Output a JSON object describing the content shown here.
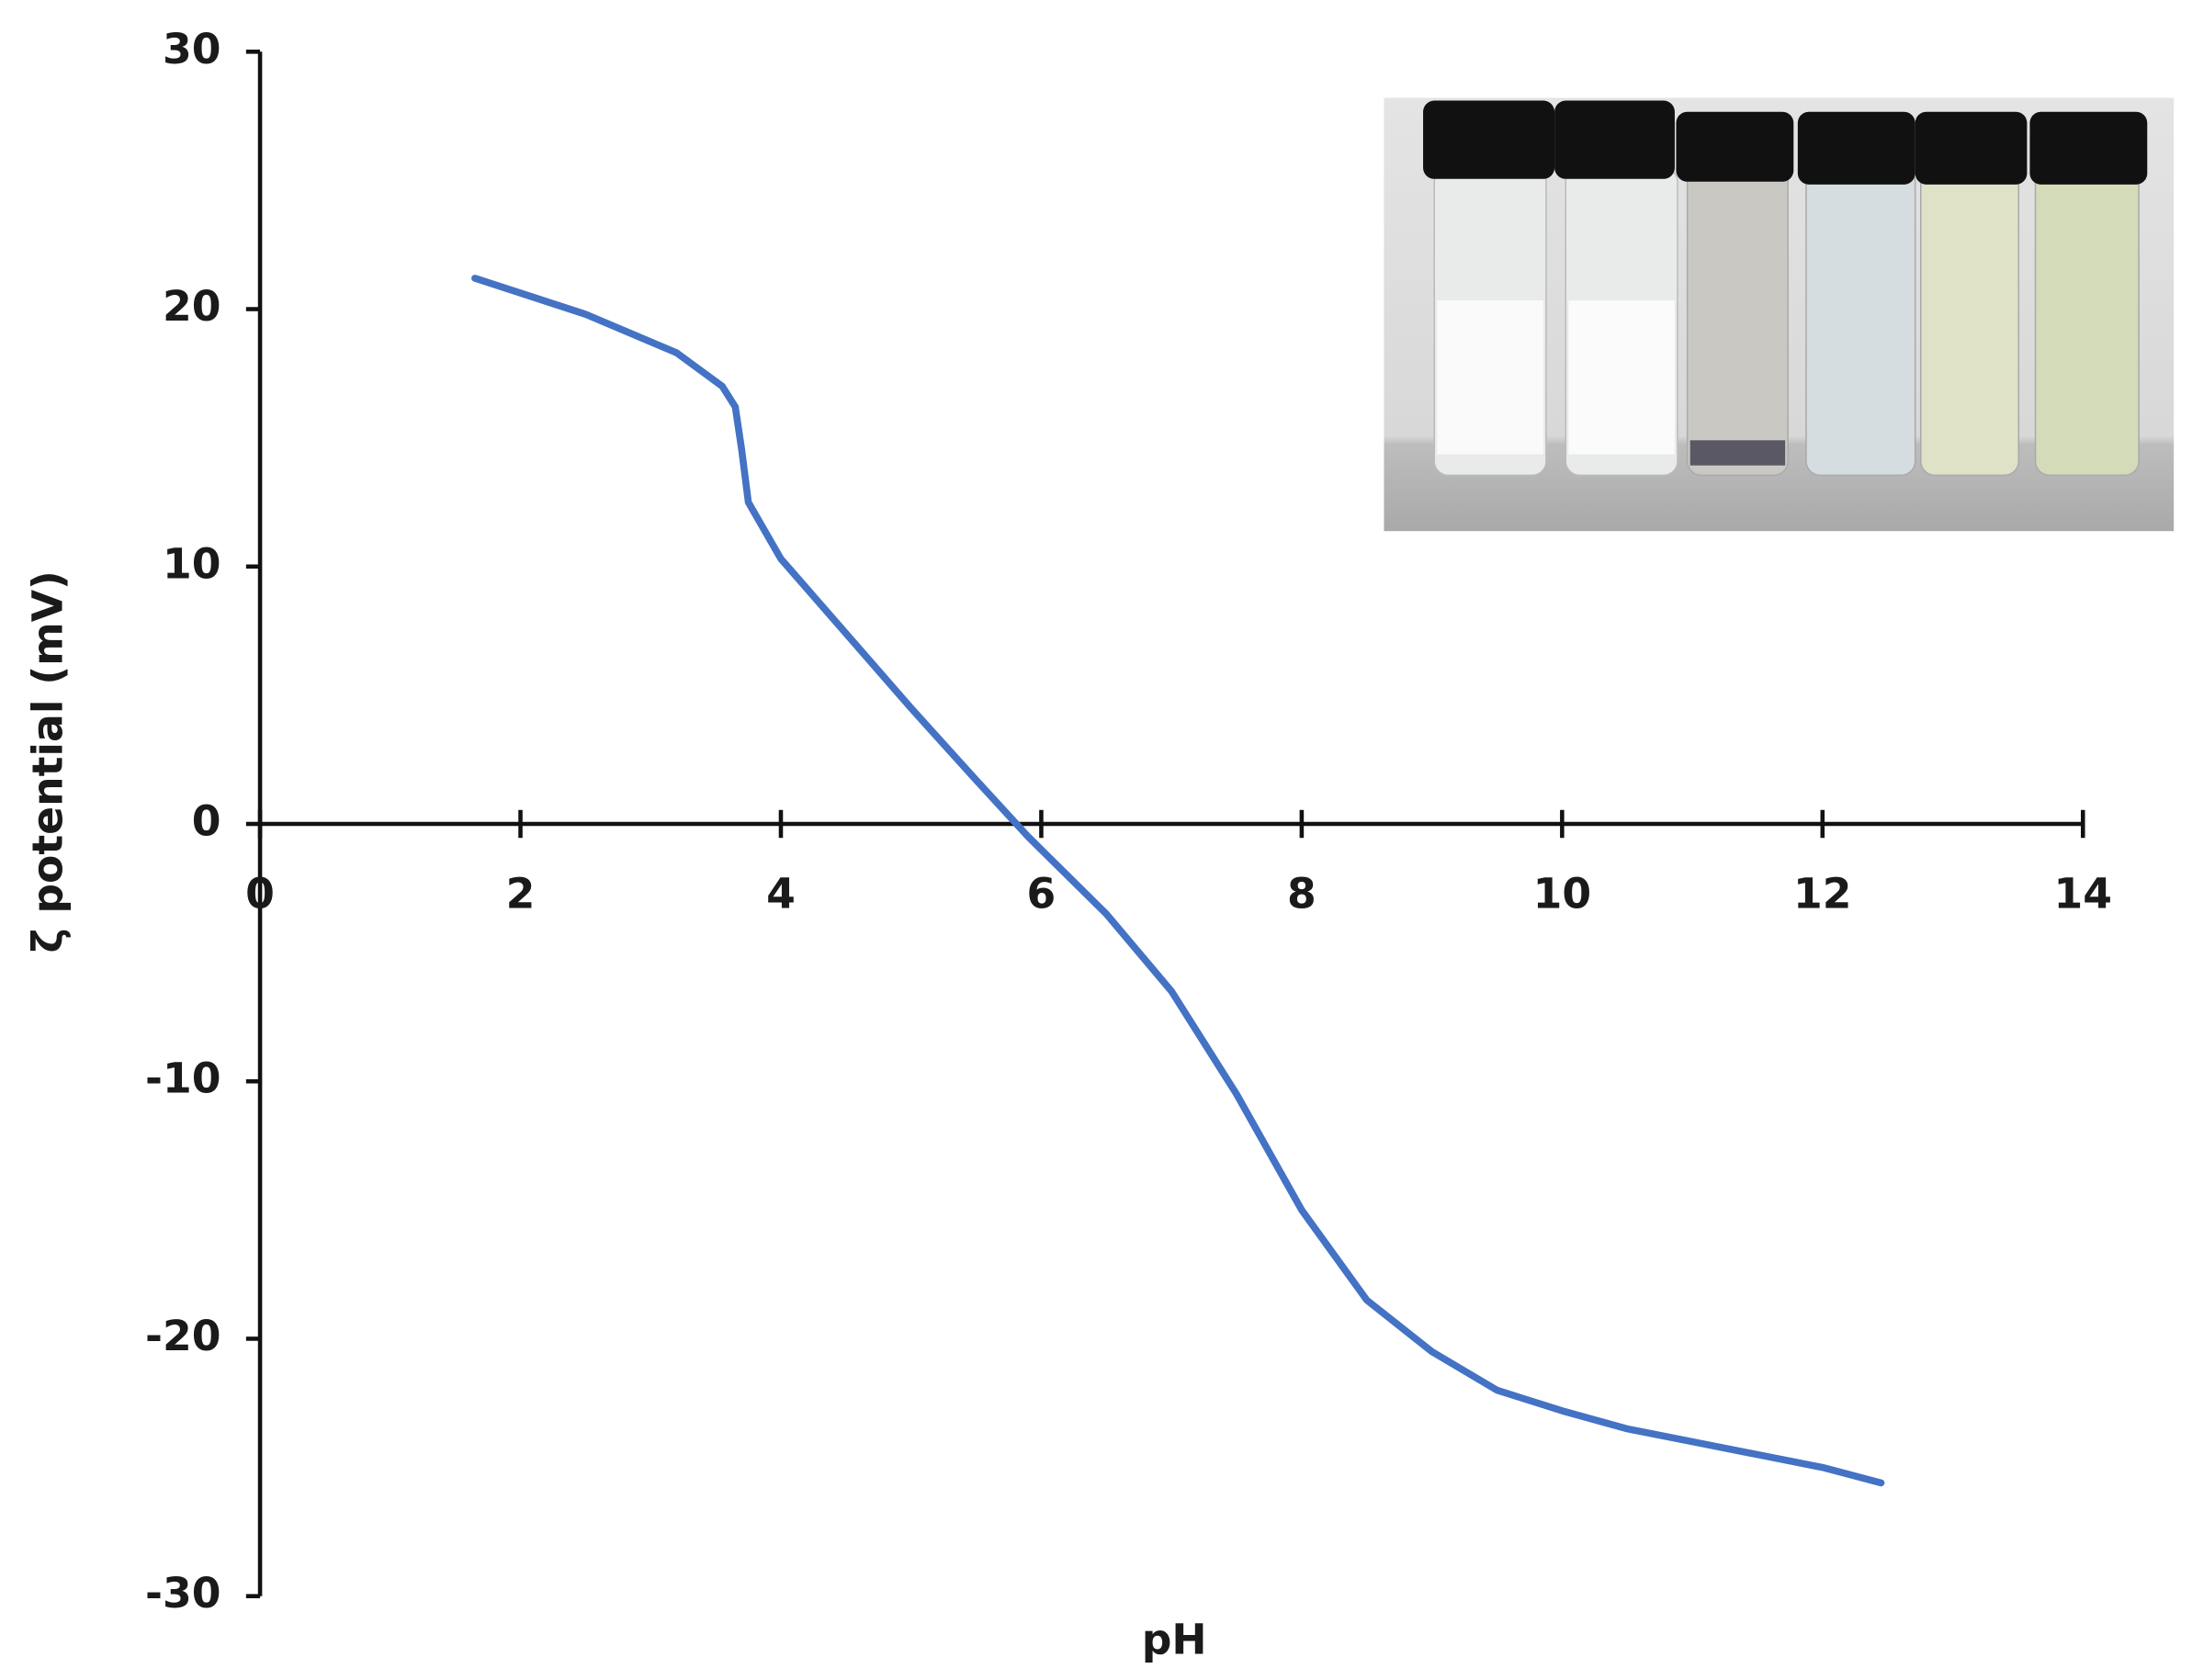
{
  "chart_data": {
    "type": "line",
    "x_label": "pH",
    "y_label": "ζ potential (mV)",
    "x": [
      1.65,
      2.5,
      3.2,
      3.55,
      3.65,
      3.7,
      3.75,
      4.0,
      4.5,
      5.0,
      5.5,
      5.9,
      6.5,
      7.0,
      7.5,
      8.0,
      8.5,
      9.0,
      9.5,
      10.0,
      10.5,
      11.0,
      11.5,
      12.0,
      12.45
    ],
    "series": [
      {
        "color": "#4472c4",
        "values": [
          21.2,
          19.8,
          18.3,
          17.0,
          16.2,
          14.5,
          12.5,
          10.3,
          7.4,
          4.5,
          1.7,
          -0.5,
          -3.5,
          -6.5,
          -10.5,
          -15.0,
          -18.5,
          -20.5,
          -22.0,
          -22.8,
          -23.5,
          -24.0,
          -24.5,
          -25.0,
          -25.6
        ]
      }
    ],
    "xlim": [
      0,
      14
    ],
    "xticks": [
      0,
      2,
      4,
      6,
      8,
      10,
      12,
      14
    ],
    "ylim": [
      -30,
      30
    ],
    "yticks": [
      -30,
      -20,
      -10,
      0,
      10,
      20,
      30
    ]
  }
}
